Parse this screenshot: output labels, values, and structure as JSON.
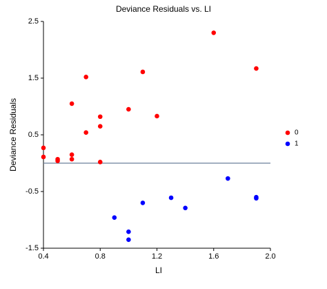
{
  "chart_data": {
    "type": "scatter",
    "title": "Deviance Residuals vs. LI",
    "x_label": "LI",
    "y_label": "Deviance Residuals",
    "series": [
      {
        "name": "0",
        "color": "#ff0000",
        "x": [
          0.4,
          0.4,
          0.5,
          0.5,
          0.6,
          0.6,
          0.6,
          0.7,
          0.7,
          0.8,
          0.8,
          0.8,
          1.0,
          1.1,
          1.2,
          1.6,
          1.9
        ],
        "values": [
          0.27,
          0.11,
          0.07,
          0.04,
          1.05,
          0.15,
          0.07,
          1.52,
          0.54,
          0.82,
          0.65,
          0.02,
          0.95,
          1.61,
          0.83,
          2.3,
          1.67
        ]
      },
      {
        "name": "1",
        "color": "#0000ff",
        "x": [
          0.9,
          1.0,
          1.0,
          1.1,
          1.3,
          1.4,
          1.7,
          1.9,
          1.9
        ],
        "values": [
          -0.96,
          -1.21,
          -1.35,
          -0.7,
          -0.61,
          -0.79,
          -0.27,
          -0.6,
          -0.62
        ]
      }
    ],
    "reference_line": 0,
    "xlim": [
      0.4,
      2
    ],
    "xticks": [
      0.4,
      0.8,
      1.2,
      1.6,
      {
        "value": 2,
        "label": "2.0"
      }
    ],
    "ylim": [
      -1.5,
      2.5
    ],
    "yticks": [
      -1.5,
      -0.5,
      0.5,
      1.5,
      2.5
    ],
    "legend": "right"
  }
}
